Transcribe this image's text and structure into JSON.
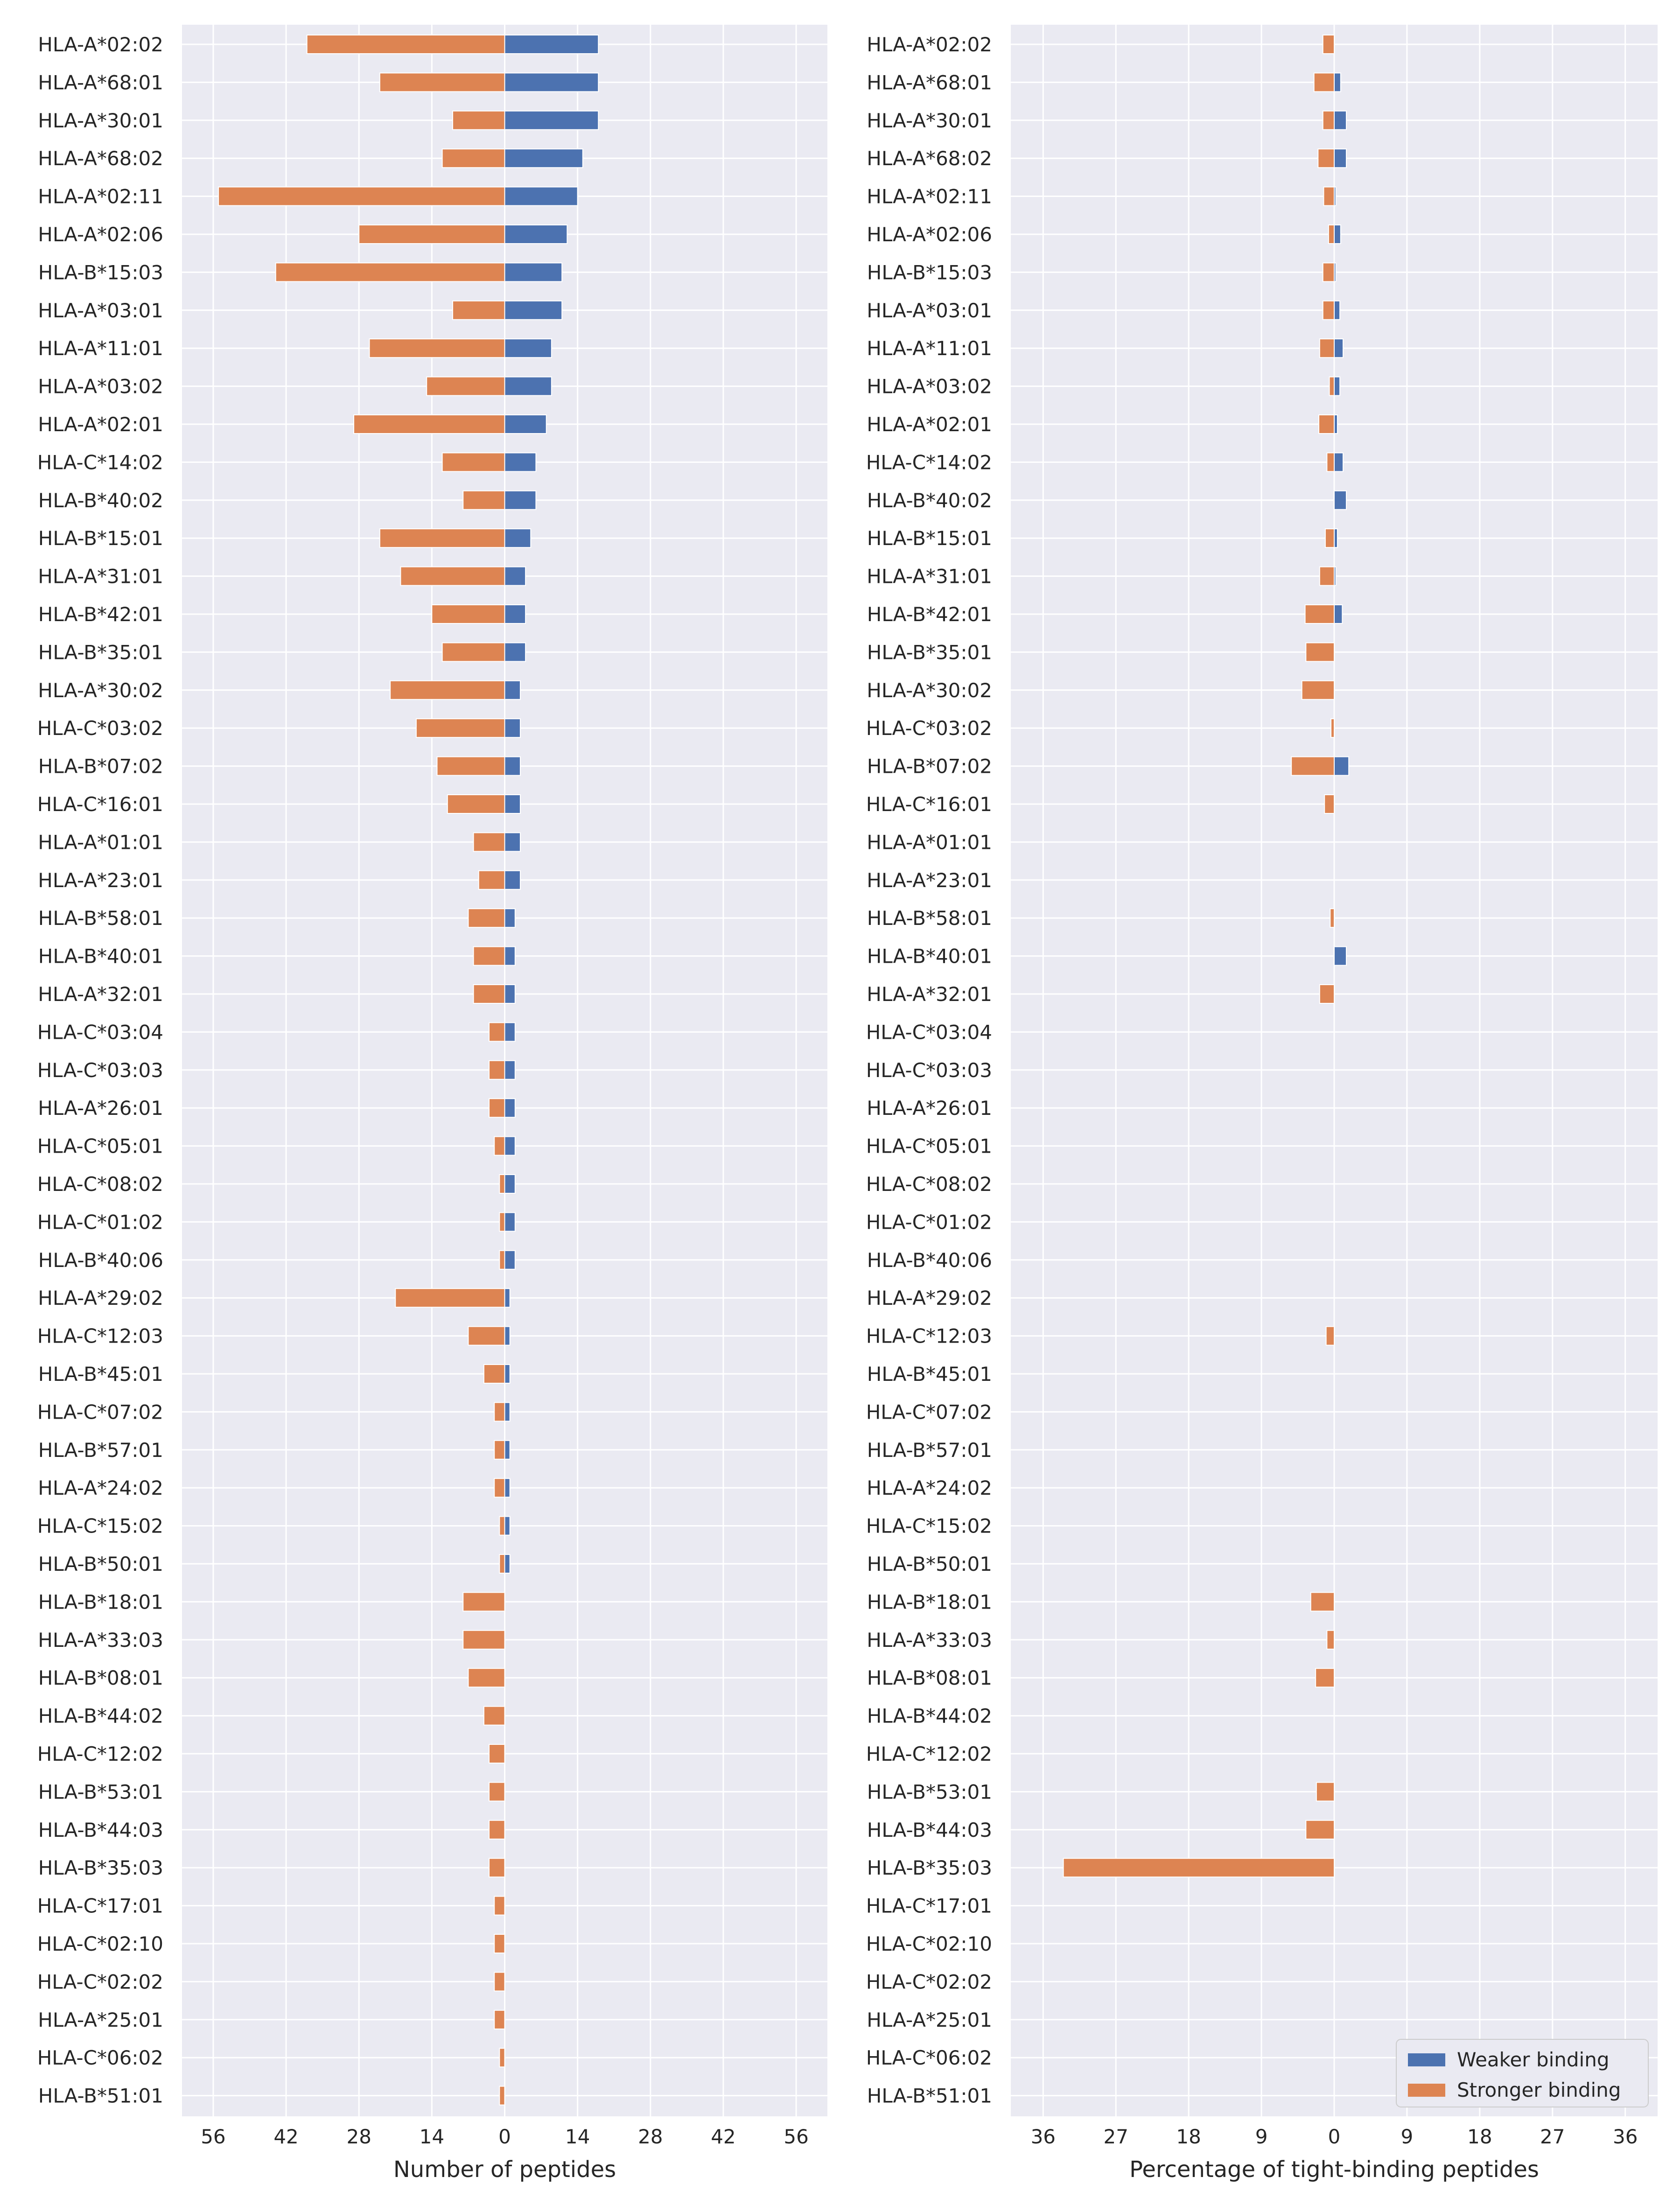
{
  "chart_data": [
    {
      "type": "bar",
      "orientation": "horizontal",
      "stacked": "diverging",
      "xlabel": "Number of peptides",
      "xlim": [
        -62,
        62
      ],
      "xticks": [
        -56,
        -42,
        -28,
        -14,
        0,
        14,
        28,
        42,
        56
      ],
      "xtick_labels": [
        "56",
        "42",
        "28",
        "14",
        "0",
        "14",
        "28",
        "42",
        "56"
      ],
      "grid": true,
      "categories": [
        "HLA-A*02:02",
        "HLA-A*68:01",
        "HLA-A*30:01",
        "HLA-A*68:02",
        "HLA-A*02:11",
        "HLA-A*02:06",
        "HLA-B*15:03",
        "HLA-A*03:01",
        "HLA-A*11:01",
        "HLA-A*03:02",
        "HLA-A*02:01",
        "HLA-C*14:02",
        "HLA-B*40:02",
        "HLA-B*15:01",
        "HLA-A*31:01",
        "HLA-B*42:01",
        "HLA-B*35:01",
        "HLA-A*30:02",
        "HLA-C*03:02",
        "HLA-B*07:02",
        "HLA-C*16:01",
        "HLA-A*01:01",
        "HLA-A*23:01",
        "HLA-B*58:01",
        "HLA-B*40:01",
        "HLA-A*32:01",
        "HLA-C*03:04",
        "HLA-C*03:03",
        "HLA-A*26:01",
        "HLA-C*05:01",
        "HLA-C*08:02",
        "HLA-C*01:02",
        "HLA-B*40:06",
        "HLA-A*29:02",
        "HLA-C*12:03",
        "HLA-B*45:01",
        "HLA-C*07:02",
        "HLA-B*57:01",
        "HLA-A*24:02",
        "HLA-C*15:02",
        "HLA-B*50:01",
        "HLA-B*18:01",
        "HLA-A*33:03",
        "HLA-B*08:01",
        "HLA-B*44:02",
        "HLA-C*12:02",
        "HLA-B*53:01",
        "HLA-B*44:03",
        "HLA-B*35:03",
        "HLA-C*17:01",
        "HLA-C*02:10",
        "HLA-C*02:02",
        "HLA-A*25:01",
        "HLA-C*06:02",
        "HLA-B*51:01"
      ],
      "series": [
        {
          "name": "Weaker binding",
          "color": "#4c72b0",
          "values": [
            18,
            18,
            18,
            15,
            14,
            12,
            11,
            11,
            9,
            9,
            8,
            6,
            6,
            5,
            4,
            4,
            4,
            3,
            3,
            3,
            3,
            3,
            3,
            2,
            2,
            2,
            2,
            2,
            2,
            2,
            2,
            2,
            2,
            1,
            1,
            1,
            1,
            1,
            1,
            1,
            1,
            0,
            0,
            0,
            0,
            0,
            0,
            0,
            0,
            0,
            0,
            0,
            0,
            0,
            0
          ]
        },
        {
          "name": "Stronger binding",
          "color": "#dd8452",
          "values": [
            38,
            24,
            10,
            12,
            55,
            28,
            44,
            10,
            26,
            15,
            29,
            12,
            8,
            24,
            20,
            14,
            12,
            22,
            17,
            13,
            11,
            6,
            5,
            7,
            6,
            6,
            3,
            3,
            3,
            2,
            1,
            1,
            1,
            21,
            7,
            4,
            2,
            2,
            2,
            1,
            1,
            8,
            8,
            7,
            4,
            3,
            3,
            3,
            3,
            2,
            2,
            2,
            2,
            1,
            1
          ]
        }
      ]
    },
    {
      "type": "bar",
      "orientation": "horizontal",
      "stacked": "diverging",
      "xlabel": "Percentage of tight-binding peptides",
      "xlim": [
        -40,
        40
      ],
      "xticks": [
        -36,
        -27,
        -18,
        -9,
        0,
        9,
        18,
        27,
        36
      ],
      "xtick_labels": [
        "36",
        "27",
        "18",
        "9",
        "0",
        "9",
        "18",
        "27",
        "36"
      ],
      "grid": true,
      "legend": {
        "position": "bottom-right",
        "entries": [
          "Weaker binding",
          "Stronger binding"
        ]
      },
      "categories": [
        "HLA-A*02:02",
        "HLA-A*68:01",
        "HLA-A*30:01",
        "HLA-A*68:02",
        "HLA-A*02:11",
        "HLA-A*02:06",
        "HLA-B*15:03",
        "HLA-A*03:01",
        "HLA-A*11:01",
        "HLA-A*03:02",
        "HLA-A*02:01",
        "HLA-C*14:02",
        "HLA-B*40:02",
        "HLA-B*15:01",
        "HLA-A*31:01",
        "HLA-B*42:01",
        "HLA-B*35:01",
        "HLA-A*30:02",
        "HLA-C*03:02",
        "HLA-B*07:02",
        "HLA-C*16:01",
        "HLA-A*01:01",
        "HLA-A*23:01",
        "HLA-B*58:01",
        "HLA-B*40:01",
        "HLA-A*32:01",
        "HLA-C*03:04",
        "HLA-C*03:03",
        "HLA-A*26:01",
        "HLA-C*05:01",
        "HLA-C*08:02",
        "HLA-C*01:02",
        "HLA-B*40:06",
        "HLA-A*29:02",
        "HLA-C*12:03",
        "HLA-B*45:01",
        "HLA-C*07:02",
        "HLA-B*57:01",
        "HLA-A*24:02",
        "HLA-C*15:02",
        "HLA-B*50:01",
        "HLA-B*18:01",
        "HLA-A*33:03",
        "HLA-B*08:01",
        "HLA-B*44:02",
        "HLA-C*12:02",
        "HLA-B*53:01",
        "HLA-B*44:03",
        "HLA-B*35:03",
        "HLA-C*17:01",
        "HLA-C*02:10",
        "HLA-C*02:02",
        "HLA-A*25:01",
        "HLA-C*06:02",
        "HLA-B*51:01"
      ],
      "series": [
        {
          "name": "Weaker binding",
          "color": "#4c72b0",
          "values": [
            0,
            0.8,
            1.5,
            1.5,
            0.2,
            0.8,
            0.2,
            0.7,
            1.1,
            0.7,
            0.4,
            1.1,
            1.5,
            0.4,
            0.2,
            1.0,
            0,
            0,
            0,
            1.8,
            0,
            0,
            0,
            0,
            1.5,
            0,
            0,
            0,
            0,
            0,
            0,
            0,
            0,
            0,
            0,
            0,
            0,
            0,
            0,
            0,
            0,
            0,
            0,
            0,
            0,
            0,
            0,
            0,
            0,
            0,
            0,
            0,
            0,
            0,
            0
          ]
        },
        {
          "name": "Stronger binding",
          "color": "#dd8452",
          "values": [
            1.4,
            2.5,
            1.4,
            2.0,
            1.3,
            0.7,
            1.4,
            1.4,
            1.8,
            0.6,
            1.9,
            0.9,
            0,
            1.1,
            1.8,
            3.6,
            3.5,
            4.0,
            0.4,
            5.3,
            1.2,
            0,
            0,
            0.5,
            0,
            1.8,
            0,
            0,
            0,
            0,
            0,
            0,
            0,
            0,
            1.0,
            0,
            0,
            0,
            0,
            0,
            0,
            2.9,
            0.9,
            2.3,
            0,
            0,
            2.2,
            3.5,
            33.5,
            0,
            0,
            0,
            0,
            0,
            0
          ]
        }
      ]
    }
  ]
}
